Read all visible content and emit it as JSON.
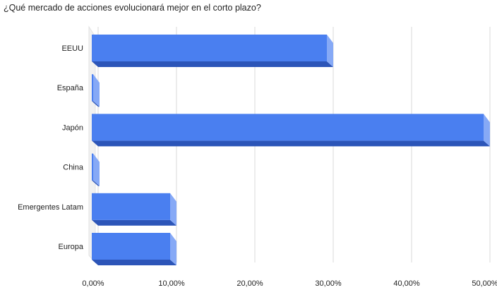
{
  "chart_data": {
    "type": "bar",
    "orientation": "horizontal",
    "title": "¿Qué mercado de acciones evolucionará mejor en el corto plazo?",
    "categories": [
      "EEUU",
      "España",
      "Japón",
      "China",
      "Emergentes Latam",
      "Europa"
    ],
    "values": [
      30.0,
      0.0,
      50.0,
      0.0,
      10.0,
      10.0
    ],
    "xlim": [
      0,
      50
    ],
    "x_ticks": [
      "0,00%",
      "10,00%",
      "20,00%",
      "30,00%",
      "40,00%",
      "50,00%"
    ],
    "x_tick_values": [
      0,
      10,
      20,
      30,
      40,
      50
    ],
    "grid": true,
    "legend": "none",
    "style": "3d",
    "colors": {
      "bar_front": "#4a7ff0",
      "bar_side": "#86a9f6",
      "bar_bottom": "#2c55b8",
      "gridline": "#d9d9d9",
      "wall": "#f1f1f1"
    }
  }
}
